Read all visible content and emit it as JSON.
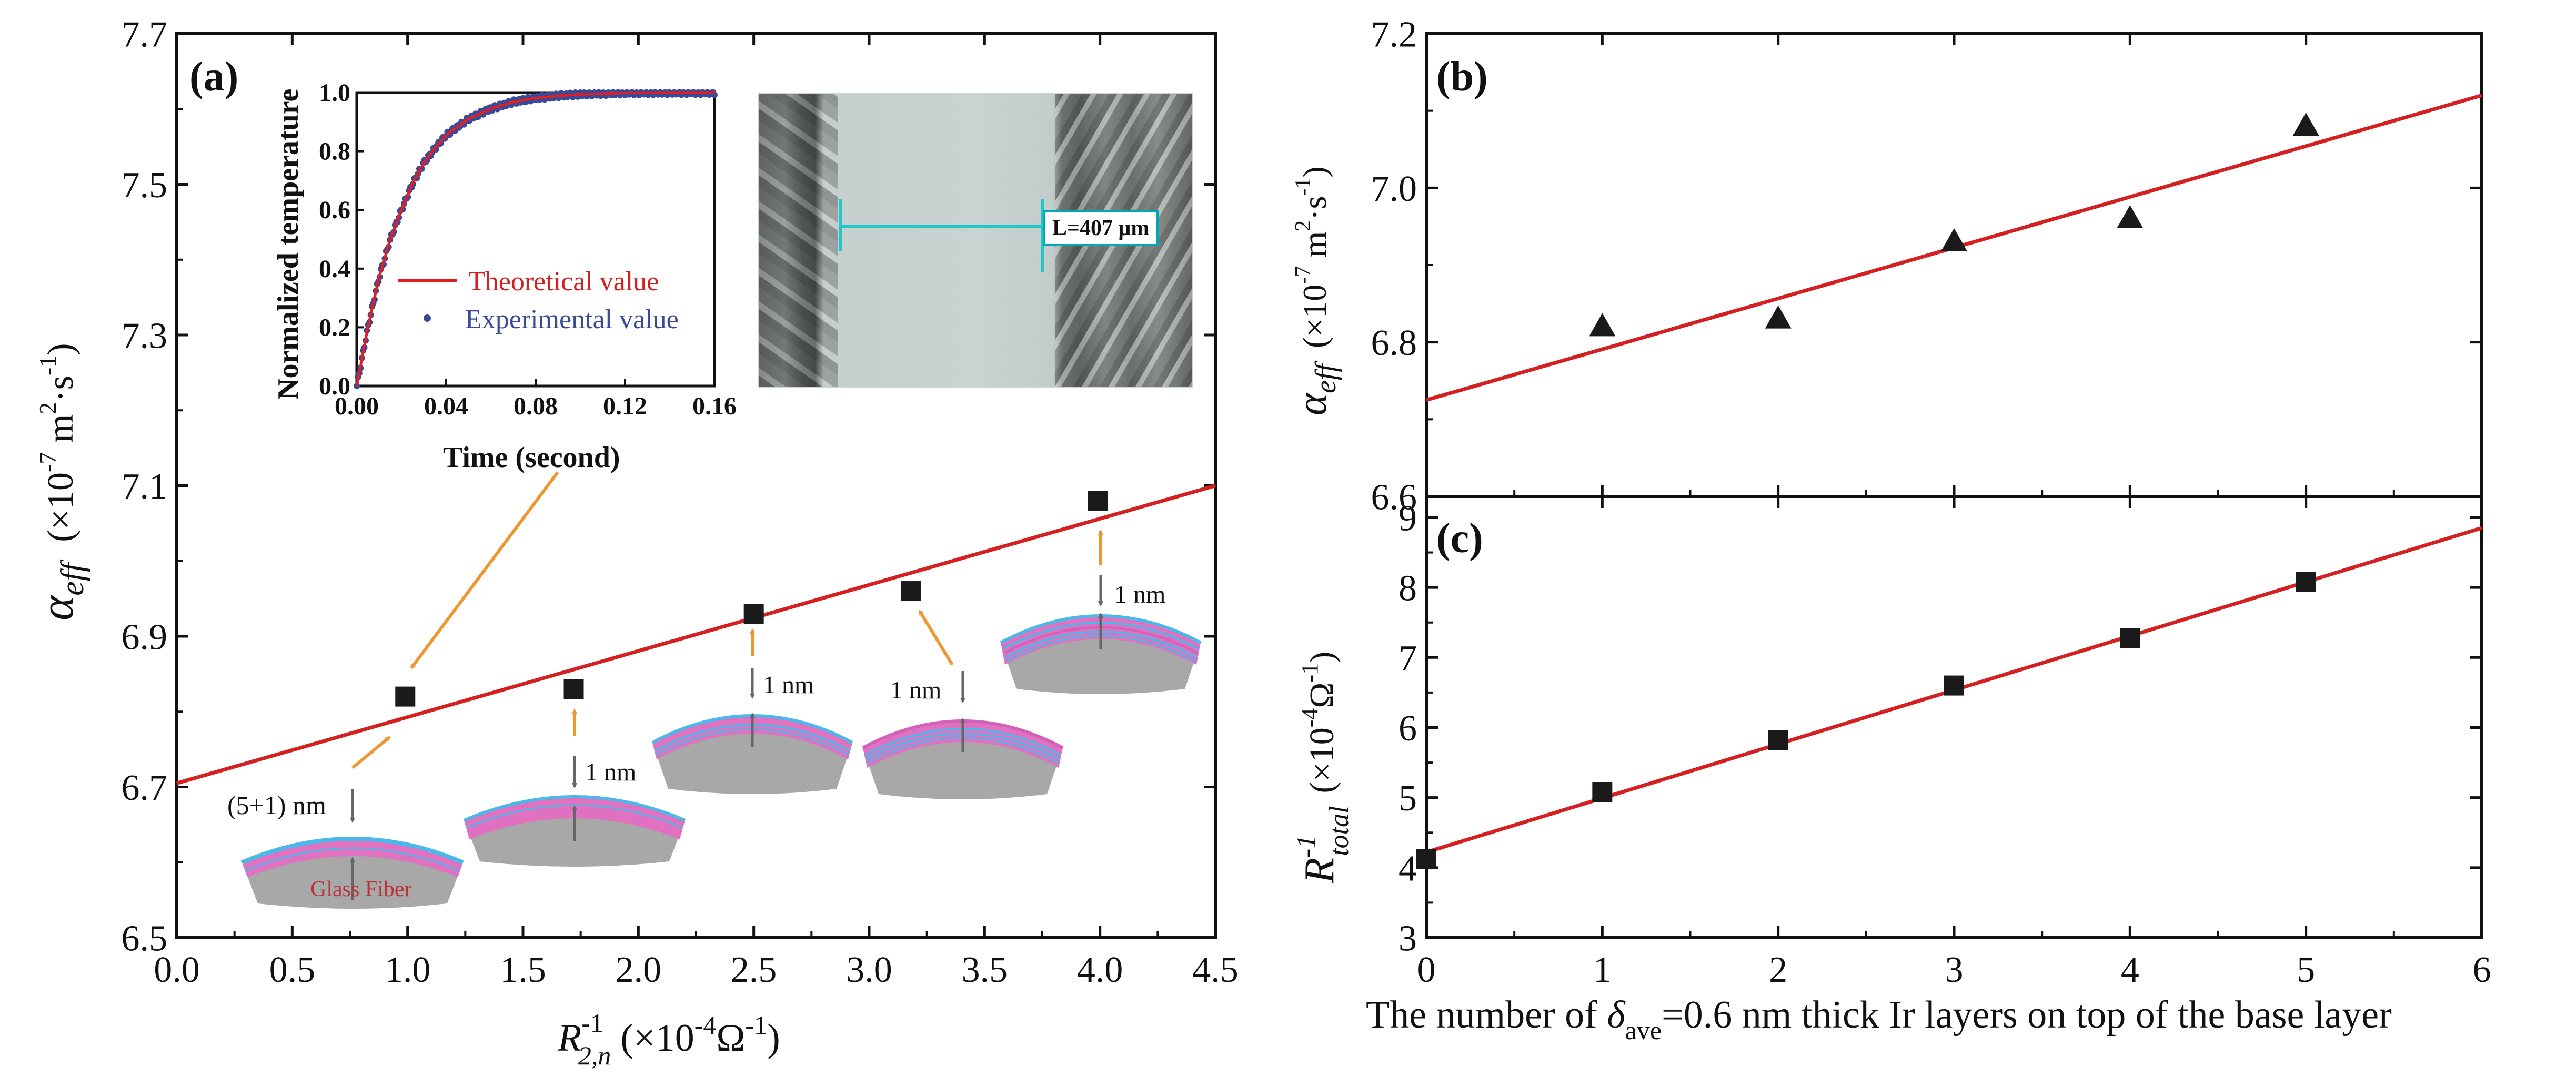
{
  "panels": {
    "a": "(a)",
    "b": "(b)",
    "c": "(c)"
  },
  "axes_text": {
    "a_y_symbol": "α",
    "a_y_sub": "eff",
    "a_y_unit": "(×10",
    "a_y_unit_exp": "-7",
    "a_y_unit_rest": " m",
    "a_y_unit_exp2": "2",
    "a_y_unit_rest2": "·s",
    "a_y_unit_exp3": "-1",
    "a_y_unit_close": ")",
    "a_x_symbol": "R",
    "a_x_sup": "-1",
    "a_x_sub": "2,n",
    "a_x_unit": "(×10",
    "a_x_unit_exp": "-4",
    "a_x_unit_rest": "Ω",
    "a_x_unit_exp2": "-1",
    "a_x_unit_close": ")",
    "c_y_symbol": "R",
    "c_y_sup": "-1",
    "c_y_sub": "total",
    "c_y_unit": "(×10",
    "c_y_unit_exp": "-4",
    "c_y_unit_rest": "Ω",
    "c_y_unit_exp2": "-1",
    "c_y_unit_close": ")",
    "bc_x_pre": "The number of ",
    "bc_x_delta": "δ",
    "bc_x_delta_sub": "ave",
    "bc_x_post": "=0.6 nm thick Ir layers on top of the base layer"
  },
  "inset": {
    "xlabel": "Time (second)",
    "ylabel": "Normalized temperature",
    "legend_theory": "Theoretical value",
    "legend_exp": "Experimental value"
  },
  "photo_label": "L=407 μm",
  "annotations": {
    "layer1": "(5+1) nm",
    "layer2": "1 nm",
    "layer3": "1 nm",
    "layer4": "1 nm",
    "layer5": "1 nm",
    "substrate": "Glass Fiber"
  },
  "colors": {
    "fit_line": "#d42020",
    "marker": "#1a1a1a",
    "arrow": "#f0962e",
    "inset_theory": "#e02020",
    "inset_exp": "#3a4a9a",
    "photo_label_border": "#00a8b8",
    "pink_layer": "#e070c0",
    "blue_layer": "#4ab8e8",
    "gray_substrate": "#a8a8a8"
  },
  "chart_data": [
    {
      "panel": "a",
      "type": "scatter",
      "x": [
        0.99,
        1.72,
        2.5,
        3.18,
        3.99
      ],
      "y": [
        6.82,
        6.83,
        6.93,
        6.96,
        7.08
      ],
      "marker": "square",
      "fit_line": {
        "x": [
          0,
          4.5
        ],
        "y": [
          6.705,
          7.1
        ]
      },
      "xlim": [
        0,
        4.5
      ],
      "ylim": [
        6.5,
        7.7
      ],
      "xticks": [
        "0.0",
        "0.5",
        "1.0",
        "1.5",
        "2.0",
        "2.5",
        "3.0",
        "3.5",
        "4.0",
        "4.5"
      ],
      "yticks": [
        "6.5",
        "6.7",
        "6.9",
        "7.1",
        "7.3",
        "7.5",
        "7.7"
      ]
    },
    {
      "panel": "a-inset",
      "type": "line",
      "x_theory": [
        0,
        0.005,
        0.01,
        0.015,
        0.02,
        0.025,
        0.03,
        0.035,
        0.04,
        0.05,
        0.06,
        0.07,
        0.08,
        0.09,
        0.1,
        0.12,
        0.14,
        0.16
      ],
      "y_theory": [
        0,
        0.2,
        0.37,
        0.5,
        0.6,
        0.69,
        0.76,
        0.81,
        0.855,
        0.91,
        0.945,
        0.968,
        0.981,
        0.989,
        0.994,
        0.999,
        1.0,
        1.0
      ],
      "xlim": [
        0,
        0.16
      ],
      "ylim": [
        0,
        1.0
      ],
      "xticks": [
        "0.00",
        "0.04",
        "0.08",
        "0.12",
        "0.16"
      ],
      "yticks": [
        "0.0",
        "0.2",
        "0.4",
        "0.6",
        "0.8",
        "1.0"
      ]
    },
    {
      "panel": "b",
      "type": "scatter",
      "x": [
        1,
        2,
        3,
        4,
        5
      ],
      "y": [
        6.82,
        6.83,
        6.93,
        6.96,
        7.08
      ],
      "marker": "triangle",
      "fit_line": {
        "x": [
          0,
          6
        ],
        "y": [
          6.725,
          7.12
        ]
      },
      "xlim": [
        0,
        6
      ],
      "ylim": [
        6.6,
        7.2
      ],
      "yticks": [
        "6.6",
        "6.8",
        "7.0",
        "7.2"
      ]
    },
    {
      "panel": "c",
      "type": "scatter",
      "x": [
        0,
        1,
        2,
        3,
        4,
        5
      ],
      "y": [
        4.12,
        5.08,
        5.82,
        6.6,
        7.28,
        8.08
      ],
      "marker": "square",
      "fit_line": {
        "x": [
          0,
          6
        ],
        "y": [
          4.22,
          8.85
        ]
      },
      "xlim": [
        0,
        6
      ],
      "ylim": [
        3,
        9.3
      ],
      "xticks": [
        "0",
        "1",
        "2",
        "3",
        "4",
        "5",
        "6"
      ],
      "yticks": [
        "3",
        "4",
        "5",
        "6",
        "7",
        "8",
        "9"
      ]
    }
  ]
}
